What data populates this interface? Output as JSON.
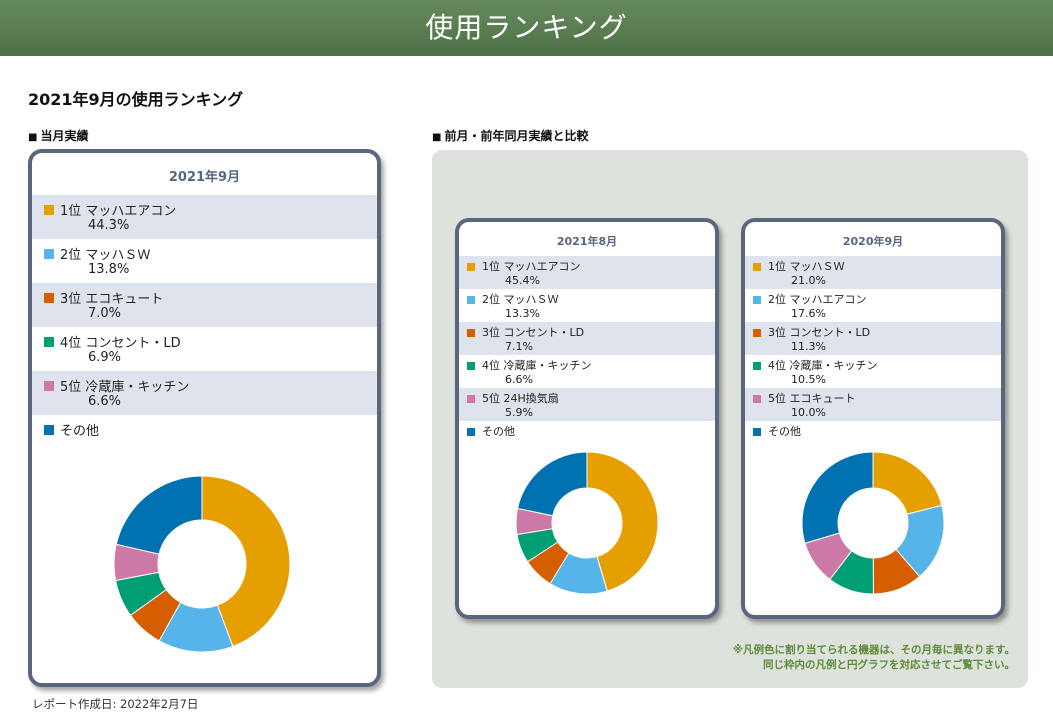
{
  "header": {
    "title": "使用ランキング"
  },
  "page_title": "2021年9月の使用ランキング",
  "sections": {
    "current": "当月実績",
    "compare": "前月・前年同月実績と比較"
  },
  "current": {
    "title": "2021年9月",
    "items": [
      {
        "label": "1位 マッハエアコン",
        "pct": "44.3%",
        "color": "#e69f00"
      },
      {
        "label": "2位 マッハＳＷ",
        "pct": "13.8%",
        "color": "#56b4e9"
      },
      {
        "label": "3位 エコキュート",
        "pct": "7.0%",
        "color": "#d55e00"
      },
      {
        "label": "4位 コンセント・LD",
        "pct": "6.9%",
        "color": "#009e73"
      },
      {
        "label": "5位  冷蔵庫・キッチン",
        "pct": "6.6%",
        "color": "#cc79a7"
      },
      {
        "label": "その他",
        "pct": "",
        "color": "#0072b2"
      }
    ],
    "values": [
      44.3,
      13.8,
      7.0,
      6.9,
      6.6,
      21.4
    ]
  },
  "prev_month": {
    "title": "2021年8月",
    "items": [
      {
        "label": "1位 マッハエアコン",
        "pct": "45.4%",
        "color": "#e69f00"
      },
      {
        "label": "2位 マッハＳＷ",
        "pct": "13.3%",
        "color": "#56b4e9"
      },
      {
        "label": "3位 コンセント・LD",
        "pct": "7.1%",
        "color": "#d55e00"
      },
      {
        "label": "4位 冷蔵庫・キッチン",
        "pct": "6.6%",
        "color": "#009e73"
      },
      {
        "label": "5位 24H換気扇",
        "pct": "5.9%",
        "color": "#cc79a7"
      },
      {
        "label": "その他",
        "pct": "",
        "color": "#0072b2"
      }
    ],
    "values": [
      45.4,
      13.3,
      7.1,
      6.6,
      5.9,
      21.7
    ]
  },
  "prev_year": {
    "title": "2020年9月",
    "items": [
      {
        "label": "1位 マッハＳＷ",
        "pct": "21.0%",
        "color": "#e69f00"
      },
      {
        "label": "2位 マッハエアコン",
        "pct": "17.6%",
        "color": "#56b4e9"
      },
      {
        "label": "3位 コンセント・LD",
        "pct": "11.3%",
        "color": "#d55e00"
      },
      {
        "label": "4位 冷蔵庫・キッチン",
        "pct": "10.5%",
        "color": "#009e73"
      },
      {
        "label": "5位 エコキュート",
        "pct": "10.0%",
        "color": "#cc79a7"
      },
      {
        "label": "その他",
        "pct": "",
        "color": "#0072b2"
      }
    ],
    "values": [
      21.0,
      17.6,
      11.3,
      10.5,
      10.0,
      29.6
    ]
  },
  "note": {
    "line1": "※凡例色に割り当てられる機器は、その月毎に異なります。",
    "line2": "同じ枠内の凡例と円グラフを対応させてご覧下さい。"
  },
  "footer": "レポート作成日: 2022年2月7日"
}
